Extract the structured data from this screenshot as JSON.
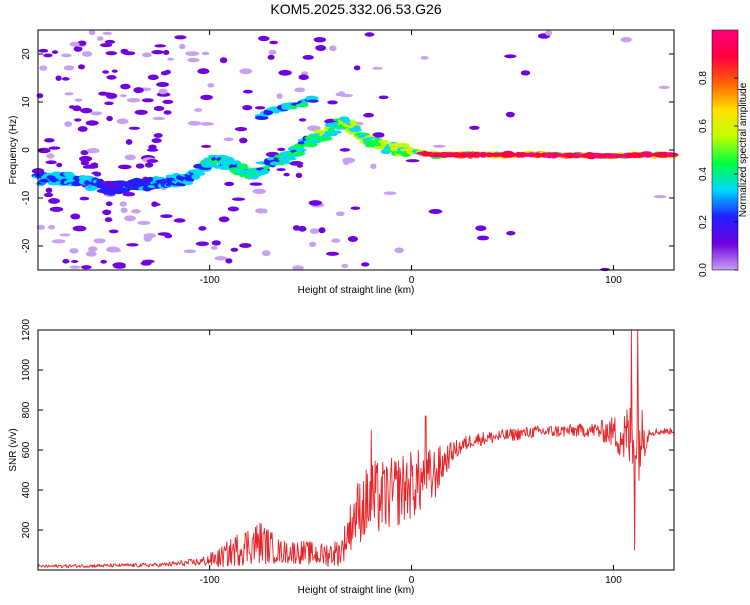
{
  "figure": {
    "title": "KOM5.2025.332.06.53.G26"
  },
  "chart_data": [
    {
      "type": "heatmap",
      "name": "spectrogram",
      "xlabel": "Height of straight line (km)",
      "ylabel": "Frequency (Hz)",
      "xlim": [
        -185,
        130
      ],
      "ylim": [
        -25,
        25
      ],
      "xticks": [
        -100,
        0,
        100
      ],
      "yticks": [
        -20,
        -10,
        0,
        10,
        20
      ],
      "colorbar": {
        "label": "Normalized spectral amplitude",
        "range": [
          0,
          1
        ],
        "ticks": [
          0.0,
          0.2,
          0.4,
          0.6,
          0.8
        ],
        "tick_labels": [
          "0.0",
          "0.2",
          "0.4",
          "0.6",
          "0.8"
        ],
        "colormap": [
          "#c8a0f0",
          "#7000e0",
          "#2020ff",
          "#00d8ff",
          "#00ff40",
          "#c0ff00",
          "#ffe000",
          "#ff6000",
          "#ff0040",
          "#ff0080"
        ]
      },
      "ridge": [
        {
          "x": -170,
          "y": -6,
          "a": 0.35
        },
        {
          "x": -150,
          "y": -8,
          "a": 0.25
        },
        {
          "x": -130,
          "y": -7,
          "a": 0.3
        },
        {
          "x": -110,
          "y": -6,
          "a": 0.35
        },
        {
          "x": -100,
          "y": -2,
          "a": 0.4
        },
        {
          "x": -90,
          "y": -3,
          "a": 0.45
        },
        {
          "x": -80,
          "y": -5,
          "a": 0.45
        },
        {
          "x": -70,
          "y": -3,
          "a": 0.4
        },
        {
          "x": -60,
          "y": -1,
          "a": 0.45
        },
        {
          "x": -50,
          "y": 2,
          "a": 0.45
        },
        {
          "x": -40,
          "y": 4,
          "a": 0.5
        },
        {
          "x": -33,
          "y": 6,
          "a": 0.55
        },
        {
          "x": -25,
          "y": 3,
          "a": 0.5
        },
        {
          "x": -15,
          "y": 1,
          "a": 0.55
        },
        {
          "x": -5,
          "y": 0,
          "a": 0.6
        },
        {
          "x": 10,
          "y": -1,
          "a": 0.7
        },
        {
          "x": 30,
          "y": -1,
          "a": 0.8
        },
        {
          "x": 60,
          "y": -1,
          "a": 0.85
        },
        {
          "x": 90,
          "y": -1.2,
          "a": 0.85
        },
        {
          "x": 105,
          "y": -1.2,
          "a": 0.7
        },
        {
          "x": 115,
          "y": -1,
          "a": 0.8
        },
        {
          "x": 130,
          "y": -1,
          "a": 0.8
        }
      ],
      "upper_branch": [
        {
          "x": -75,
          "y": 7,
          "a": 0.4
        },
        {
          "x": -70,
          "y": 8,
          "a": 0.4
        },
        {
          "x": -52,
          "y": 10,
          "a": 0.4
        },
        {
          "x": -48,
          "y": 10.5,
          "a": 0.35
        }
      ]
    },
    {
      "type": "line",
      "name": "snr",
      "xlabel": "Height of straight line (km)",
      "ylabel": "SNR (v/v)",
      "xlim": [
        -185,
        130
      ],
      "ylim": [
        0,
        1200
      ],
      "xticks": [
        -100,
        0,
        100
      ],
      "yticks": [
        200,
        400,
        600,
        800,
        1000,
        1200
      ],
      "color": "#e8252a",
      "envelope": [
        {
          "x": -185,
          "base": 18,
          "noise": 8
        },
        {
          "x": -125,
          "base": 25,
          "noise": 10
        },
        {
          "x": -105,
          "base": 40,
          "noise": 20
        },
        {
          "x": -95,
          "base": 60,
          "noise": 50
        },
        {
          "x": -85,
          "base": 110,
          "noise": 90
        },
        {
          "x": -75,
          "base": 140,
          "noise": 110
        },
        {
          "x": -65,
          "base": 90,
          "noise": 60
        },
        {
          "x": -55,
          "base": 90,
          "noise": 60
        },
        {
          "x": -45,
          "base": 75,
          "noise": 60
        },
        {
          "x": -35,
          "base": 90,
          "noise": 70
        },
        {
          "x": -28,
          "base": 280,
          "noise": 150
        },
        {
          "x": -20,
          "base": 350,
          "noise": 200
        },
        {
          "x": -12,
          "base": 370,
          "noise": 180
        },
        {
          "x": -2,
          "base": 420,
          "noise": 180
        },
        {
          "x": 10,
          "base": 460,
          "noise": 150
        },
        {
          "x": 20,
          "base": 590,
          "noise": 50
        },
        {
          "x": 30,
          "base": 650,
          "noise": 35
        },
        {
          "x": 60,
          "base": 690,
          "noise": 30
        },
        {
          "x": 90,
          "base": 700,
          "noise": 35
        },
        {
          "x": 100,
          "base": 690,
          "noise": 80
        },
        {
          "x": 106,
          "base": 660,
          "noise": 160
        },
        {
          "x": 112,
          "base": 650,
          "noise": 230
        },
        {
          "x": 118,
          "base": 690,
          "noise": 20
        },
        {
          "x": 130,
          "base": 695,
          "noise": 15
        }
      ],
      "spikes": [
        {
          "x": -20,
          "y": 700
        },
        {
          "x": 7,
          "y": 770
        },
        {
          "x": 109,
          "y": 1200
        },
        {
          "x": 110.5,
          "y": 100
        },
        {
          "x": 112,
          "y": 1200
        }
      ]
    }
  ]
}
